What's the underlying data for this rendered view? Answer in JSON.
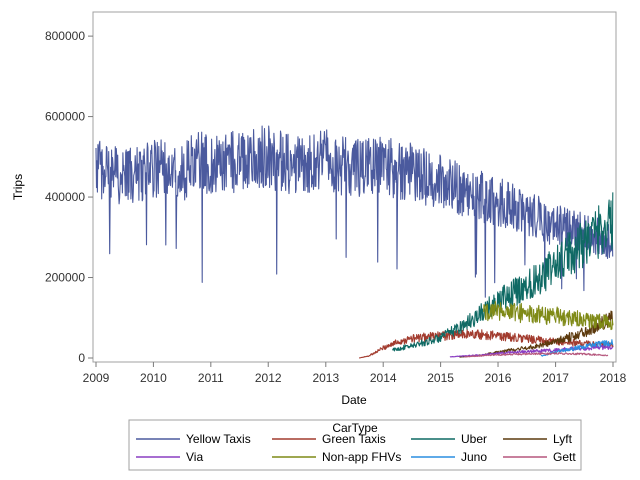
{
  "chart_data": {
    "type": "line",
    "title": "",
    "xlabel": "Date",
    "ylabel": "Trips",
    "xlim": [
      "2009-01-01",
      "2018-01-01"
    ],
    "ylim": [
      0,
      850000
    ],
    "x_ticks": [
      "2009",
      "2010",
      "2011",
      "2012",
      "2013",
      "2014",
      "2015",
      "2016",
      "2017",
      "2018"
    ],
    "y_ticks": [
      0,
      200000,
      400000,
      600000,
      800000
    ],
    "y_tick_labels": [
      "0",
      "200000",
      "400000",
      "600000",
      "800000"
    ],
    "grid": false,
    "legend": {
      "title": "CarType",
      "placement": "bottom",
      "columns": 4
    },
    "series": [
      {
        "name": "Yellow Taxis",
        "color": "#4b5a9e",
        "points": [
          [
            "2009-01-01",
            470000
          ],
          [
            "2009-07-01",
            450000
          ],
          [
            "2010-01-01",
            470000
          ],
          [
            "2010-07-01",
            460000
          ],
          [
            "2010-09-15",
            490000
          ],
          [
            "2011-01-01",
            480000
          ],
          [
            "2011-07-01",
            490000
          ],
          [
            "2012-01-01",
            500000
          ],
          [
            "2012-07-01",
            480000
          ],
          [
            "2013-01-01",
            490000
          ],
          [
            "2013-07-01",
            470000
          ],
          [
            "2014-01-01",
            480000
          ],
          [
            "2014-07-01",
            460000
          ],
          [
            "2015-01-01",
            440000
          ],
          [
            "2015-07-01",
            410000
          ],
          [
            "2016-01-01",
            390000
          ],
          [
            "2016-07-01",
            360000
          ],
          [
            "2017-01-01",
            330000
          ],
          [
            "2017-07-01",
            310000
          ],
          [
            "2018-01-01",
            290000
          ]
        ]
      },
      {
        "name": "Green Taxis",
        "color": "#a23b2e",
        "points": [
          [
            "2013-08-01",
            0
          ],
          [
            "2013-10-01",
            5000
          ],
          [
            "2014-01-01",
            25000
          ],
          [
            "2014-04-01",
            40000
          ],
          [
            "2014-07-01",
            48000
          ],
          [
            "2015-01-01",
            55000
          ],
          [
            "2015-07-01",
            60000
          ],
          [
            "2016-01-01",
            55000
          ],
          [
            "2016-07-01",
            48000
          ],
          [
            "2017-01-01",
            40000
          ],
          [
            "2017-07-01",
            36000
          ],
          [
            "2018-01-01",
            32000
          ]
        ]
      },
      {
        "name": "Uber",
        "color": "#0f6a64",
        "points": [
          [
            "2014-03-01",
            20000
          ],
          [
            "2014-07-01",
            30000
          ],
          [
            "2015-01-01",
            50000
          ],
          [
            "2015-07-01",
            90000
          ],
          [
            "2016-01-01",
            140000
          ],
          [
            "2016-07-01",
            180000
          ],
          [
            "2017-01-01",
            230000
          ],
          [
            "2017-07-01",
            290000
          ],
          [
            "2018-01-01",
            340000
          ]
        ]
      },
      {
        "name": "Lyft",
        "color": "#5c3a0e",
        "points": [
          [
            "2015-05-01",
            2000
          ],
          [
            "2015-10-01",
            8000
          ],
          [
            "2016-01-01",
            15000
          ],
          [
            "2016-07-01",
            25000
          ],
          [
            "2017-01-01",
            40000
          ],
          [
            "2017-07-01",
            65000
          ],
          [
            "2018-01-01",
            100000
          ]
        ]
      },
      {
        "name": "Via",
        "color": "#8a3ec2",
        "points": [
          [
            "2015-03-01",
            3000
          ],
          [
            "2015-10-01",
            8000
          ],
          [
            "2016-01-01",
            12000
          ],
          [
            "2016-07-01",
            16000
          ],
          [
            "2017-01-01",
            20000
          ],
          [
            "2017-07-01",
            24000
          ],
          [
            "2018-01-01",
            28000
          ]
        ]
      },
      {
        "name": "Non-app FHVs",
        "color": "#7f8a17",
        "points": [
          [
            "2015-10-01",
            115000
          ],
          [
            "2016-01-01",
            120000
          ],
          [
            "2016-07-01",
            110000
          ],
          [
            "2017-01-01",
            105000
          ],
          [
            "2017-07-01",
            95000
          ],
          [
            "2018-01-01",
            88000
          ]
        ]
      },
      {
        "name": "Juno",
        "color": "#2a8ee0",
        "points": [
          [
            "2016-10-01",
            5000
          ],
          [
            "2017-01-01",
            15000
          ],
          [
            "2017-07-01",
            28000
          ],
          [
            "2018-01-01",
            40000
          ]
        ]
      },
      {
        "name": "Gett",
        "color": "#b5577d",
        "points": [
          [
            "2015-06-01",
            3000
          ],
          [
            "2016-01-01",
            8000
          ],
          [
            "2016-07-01",
            10000
          ],
          [
            "2017-01-01",
            11000
          ],
          [
            "2017-07-01",
            10000
          ],
          [
            "2017-12-01",
            6000
          ]
        ]
      }
    ]
  }
}
